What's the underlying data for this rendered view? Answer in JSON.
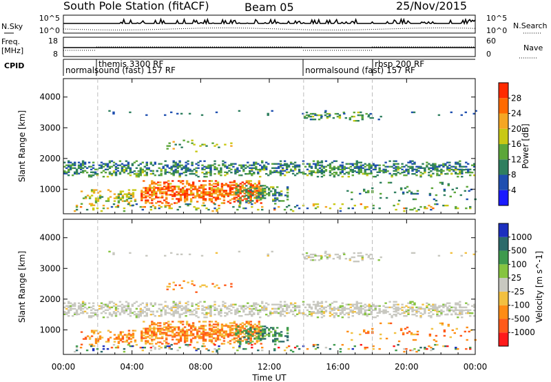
{
  "header": {
    "station": "South Pole Station (fitACF)",
    "beam": "Beam 05",
    "date": "25/Nov/2015"
  },
  "panels": {
    "nsky_label": "N.Sky",
    "nsearch_label": "N.Search",
    "freq_label_top": "Freq.",
    "freq_label_bottom": "[MHz]",
    "nave_label": "Nave",
    "cpid_label": "CPID",
    "nsky_ticks": [
      "10^5",
      "10^0"
    ],
    "nsearch_ticks": [
      "10^5",
      "10^0"
    ],
    "freq_ticks": [
      "18",
      "8"
    ],
    "nave_ticks": [
      "60",
      "0"
    ]
  },
  "cpid": [
    {
      "label": "themis 3300 RF"
    },
    {
      "label": "normalsound (fast) 157 RF"
    },
    {
      "label": "normalsound (fast) 157 RF"
    },
    {
      "label": "rbsp 200 RF"
    }
  ],
  "colors": {
    "power_scale": [
      "#1a1aff",
      "#1f4fb0",
      "#2f7f5f",
      "#5ca63a",
      "#c8c814",
      "#f5a623",
      "#ff6a00",
      "#ff2a00"
    ],
    "velocity_scale": [
      "#1c2fbf",
      "#2c6a6a",
      "#3e9a4e",
      "#86c440",
      "#c8c8c0",
      "#f2c040",
      "#ff8c14",
      "#ff5a1a",
      "#ff1a1a"
    ]
  },
  "chart_data": [
    {
      "type": "heatmap",
      "quantity": "power",
      "ylabel": "Slant Range [km]",
      "yticks": [
        1000,
        2000,
        3000,
        4000
      ],
      "ylim": [
        200,
        4600
      ],
      "colorbar_label": "Power [dB]",
      "colorbar_ticks": [
        "28",
        "24",
        "20",
        "16",
        "12",
        "8",
        "4"
      ],
      "colorbar_range": [
        0,
        30
      ]
    },
    {
      "type": "heatmap",
      "quantity": "velocity",
      "ylabel": "Slant Range [km]",
      "yticks": [
        1000,
        2000,
        3000,
        4000
      ],
      "ylim": [
        200,
        4600
      ],
      "colorbar_label": "Velocity [m s^-1]",
      "colorbar_ticks": [
        "1000",
        "500",
        "100",
        "25",
        "-25",
        "-100",
        "-500",
        "-1000"
      ]
    }
  ],
  "time_axis": {
    "ticks": [
      "00:00",
      "04:00",
      "08:00",
      "12:00",
      "16:00",
      "20:00",
      "00:00"
    ],
    "xlabel": "Time UT",
    "xlim_hours": [
      0,
      24
    ],
    "mode_change_hours": [
      2.0,
      14.0,
      18.0
    ]
  }
}
